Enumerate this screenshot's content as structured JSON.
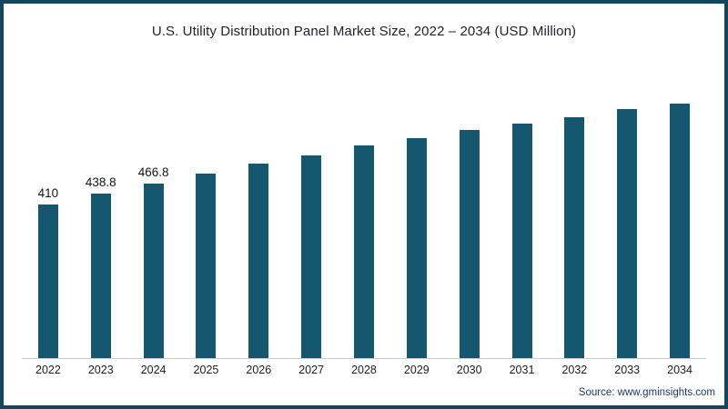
{
  "colors": {
    "bar": "#14576f",
    "frame_border": "#11465f",
    "background": "#ffffff",
    "axis_line": "#cccccc",
    "title_text": "#22222e",
    "source_text": "#17395e"
  },
  "footer": {
    "source": "Source: www.gminsights.com"
  },
  "chart_data": {
    "type": "bar",
    "title": "U.S. Utility Distribution Panel Market Size, 2022 – 2034 (USD Million)",
    "xlabel": "",
    "ylabel": "",
    "categories": [
      "2022",
      "2023",
      "2024",
      "2025",
      "2026",
      "2027",
      "2028",
      "2029",
      "2030",
      "2031",
      "2032",
      "2033",
      "2034"
    ],
    "values": [
      410,
      438.8,
      466.8,
      493,
      520,
      542,
      567,
      588,
      610,
      626,
      644,
      664,
      680
    ],
    "data_labels": [
      "410",
      "438.8",
      "466.8",
      "",
      "",
      "",
      "",
      "",
      "",
      "",
      "",
      "",
      ""
    ],
    "bar_color": "#14576f",
    "ylim": [
      0,
      700
    ],
    "y_axis_visible": false,
    "grid": false,
    "legend": false
  }
}
